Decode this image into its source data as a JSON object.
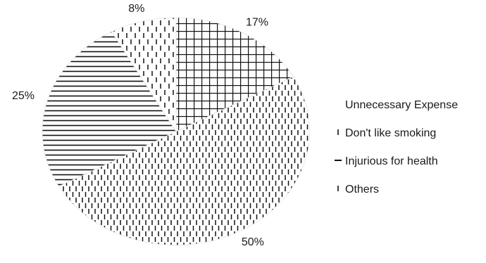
{
  "chart_data": {
    "type": "pie",
    "title": "",
    "slices": [
      {
        "label": "Unnecessary Expense",
        "value": 17,
        "display": "17%",
        "pattern": "grid"
      },
      {
        "label": "Don't like smoking",
        "value": 50,
        "display": "50%",
        "pattern": "vertical-dashes"
      },
      {
        "label": "Injurious for health",
        "value": 25,
        "display": "25%",
        "pattern": "horizontal-lines"
      },
      {
        "label": "Others",
        "value": 8,
        "display": "8%",
        "pattern": "vertical-dashes-sparse"
      }
    ],
    "start_angle_deg": 0,
    "direction": "clockwise",
    "legend_position": "right",
    "colors": {
      "stroke": "#222222",
      "fill": "#ffffff"
    }
  }
}
